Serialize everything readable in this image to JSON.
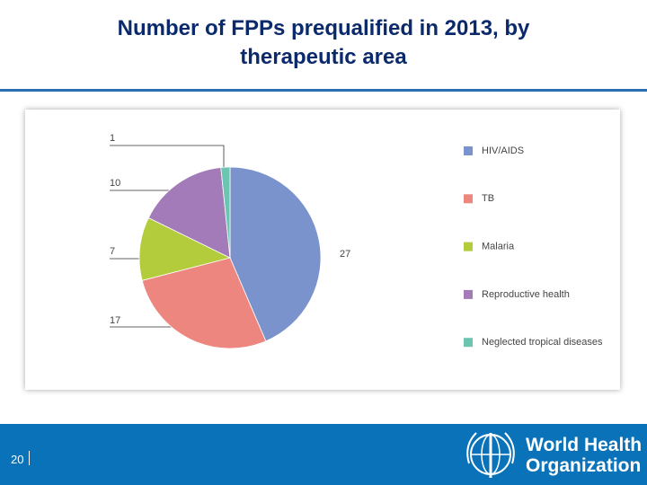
{
  "slide": {
    "title": "Number of FPPs prequalified in 2013, by therapeutic area",
    "page_number": "20",
    "logo_text": [
      "World Health",
      "Organization"
    ]
  },
  "chart_data": {
    "type": "pie",
    "categories": [
      "HIV/AIDS",
      "TB",
      "Malaria",
      "Reproductive health",
      "Neglected tropical diseases"
    ],
    "values": [
      27,
      17,
      7,
      10,
      1
    ],
    "colors": [
      "#7b93cc",
      "#ee8680",
      "#b3cc3c",
      "#a27bb8",
      "#6cc5b0"
    ],
    "legend": "right"
  }
}
